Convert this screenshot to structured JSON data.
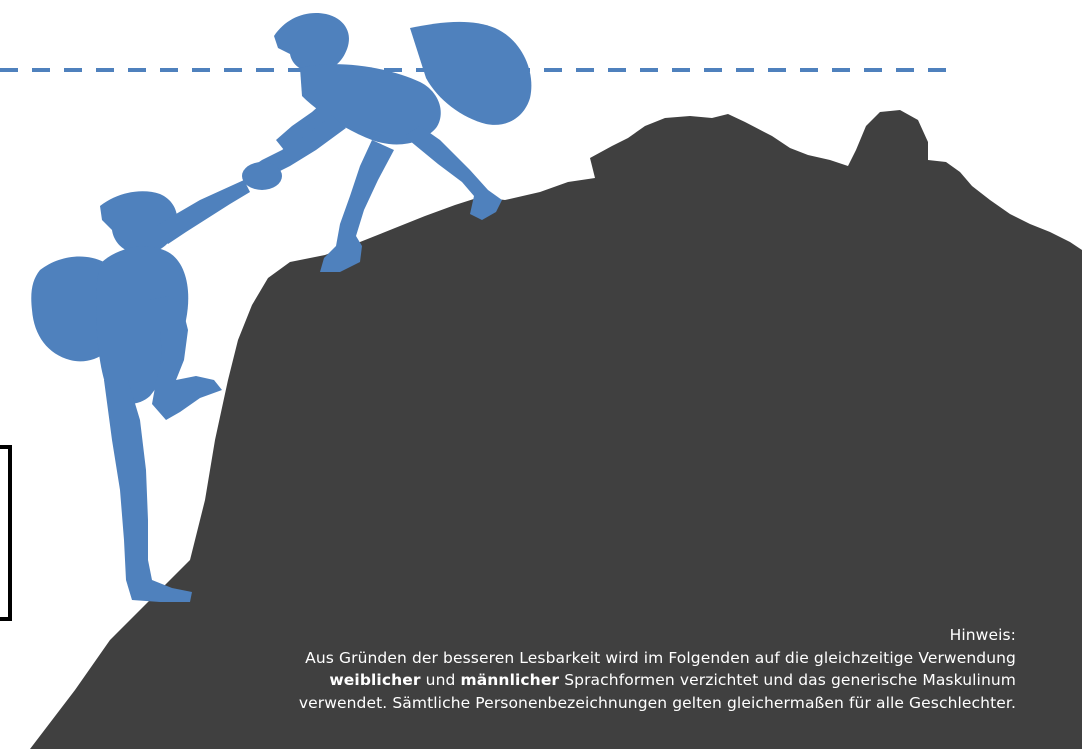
{
  "colors": {
    "background": "#ffffff",
    "mountain": "#404040",
    "climbers": "#4f81bd",
    "dashed_line": "#4f81bd",
    "frame": "#000000",
    "note_text": "#ffffff"
  },
  "graphics": {
    "mountain": "mountain-silhouette",
    "upper_climber": "climber-silhouette",
    "lower_climber": "climber-silhouette"
  },
  "note": {
    "heading": "Hinweis:",
    "line1": "Aus Gründen der besseren Lesbarkeit wird im Folgenden auf die gleichzeitige Verwendung",
    "word_female": "weiblicher",
    "word_and": "und",
    "word_male": "männlicher",
    "line2_rest": "Sprachformen verzichtet und das generische Maskulinum",
    "line3": "verwendet. Sämtliche Personenbezeichnungen gelten gleichermaßen für alle Geschlechter."
  }
}
